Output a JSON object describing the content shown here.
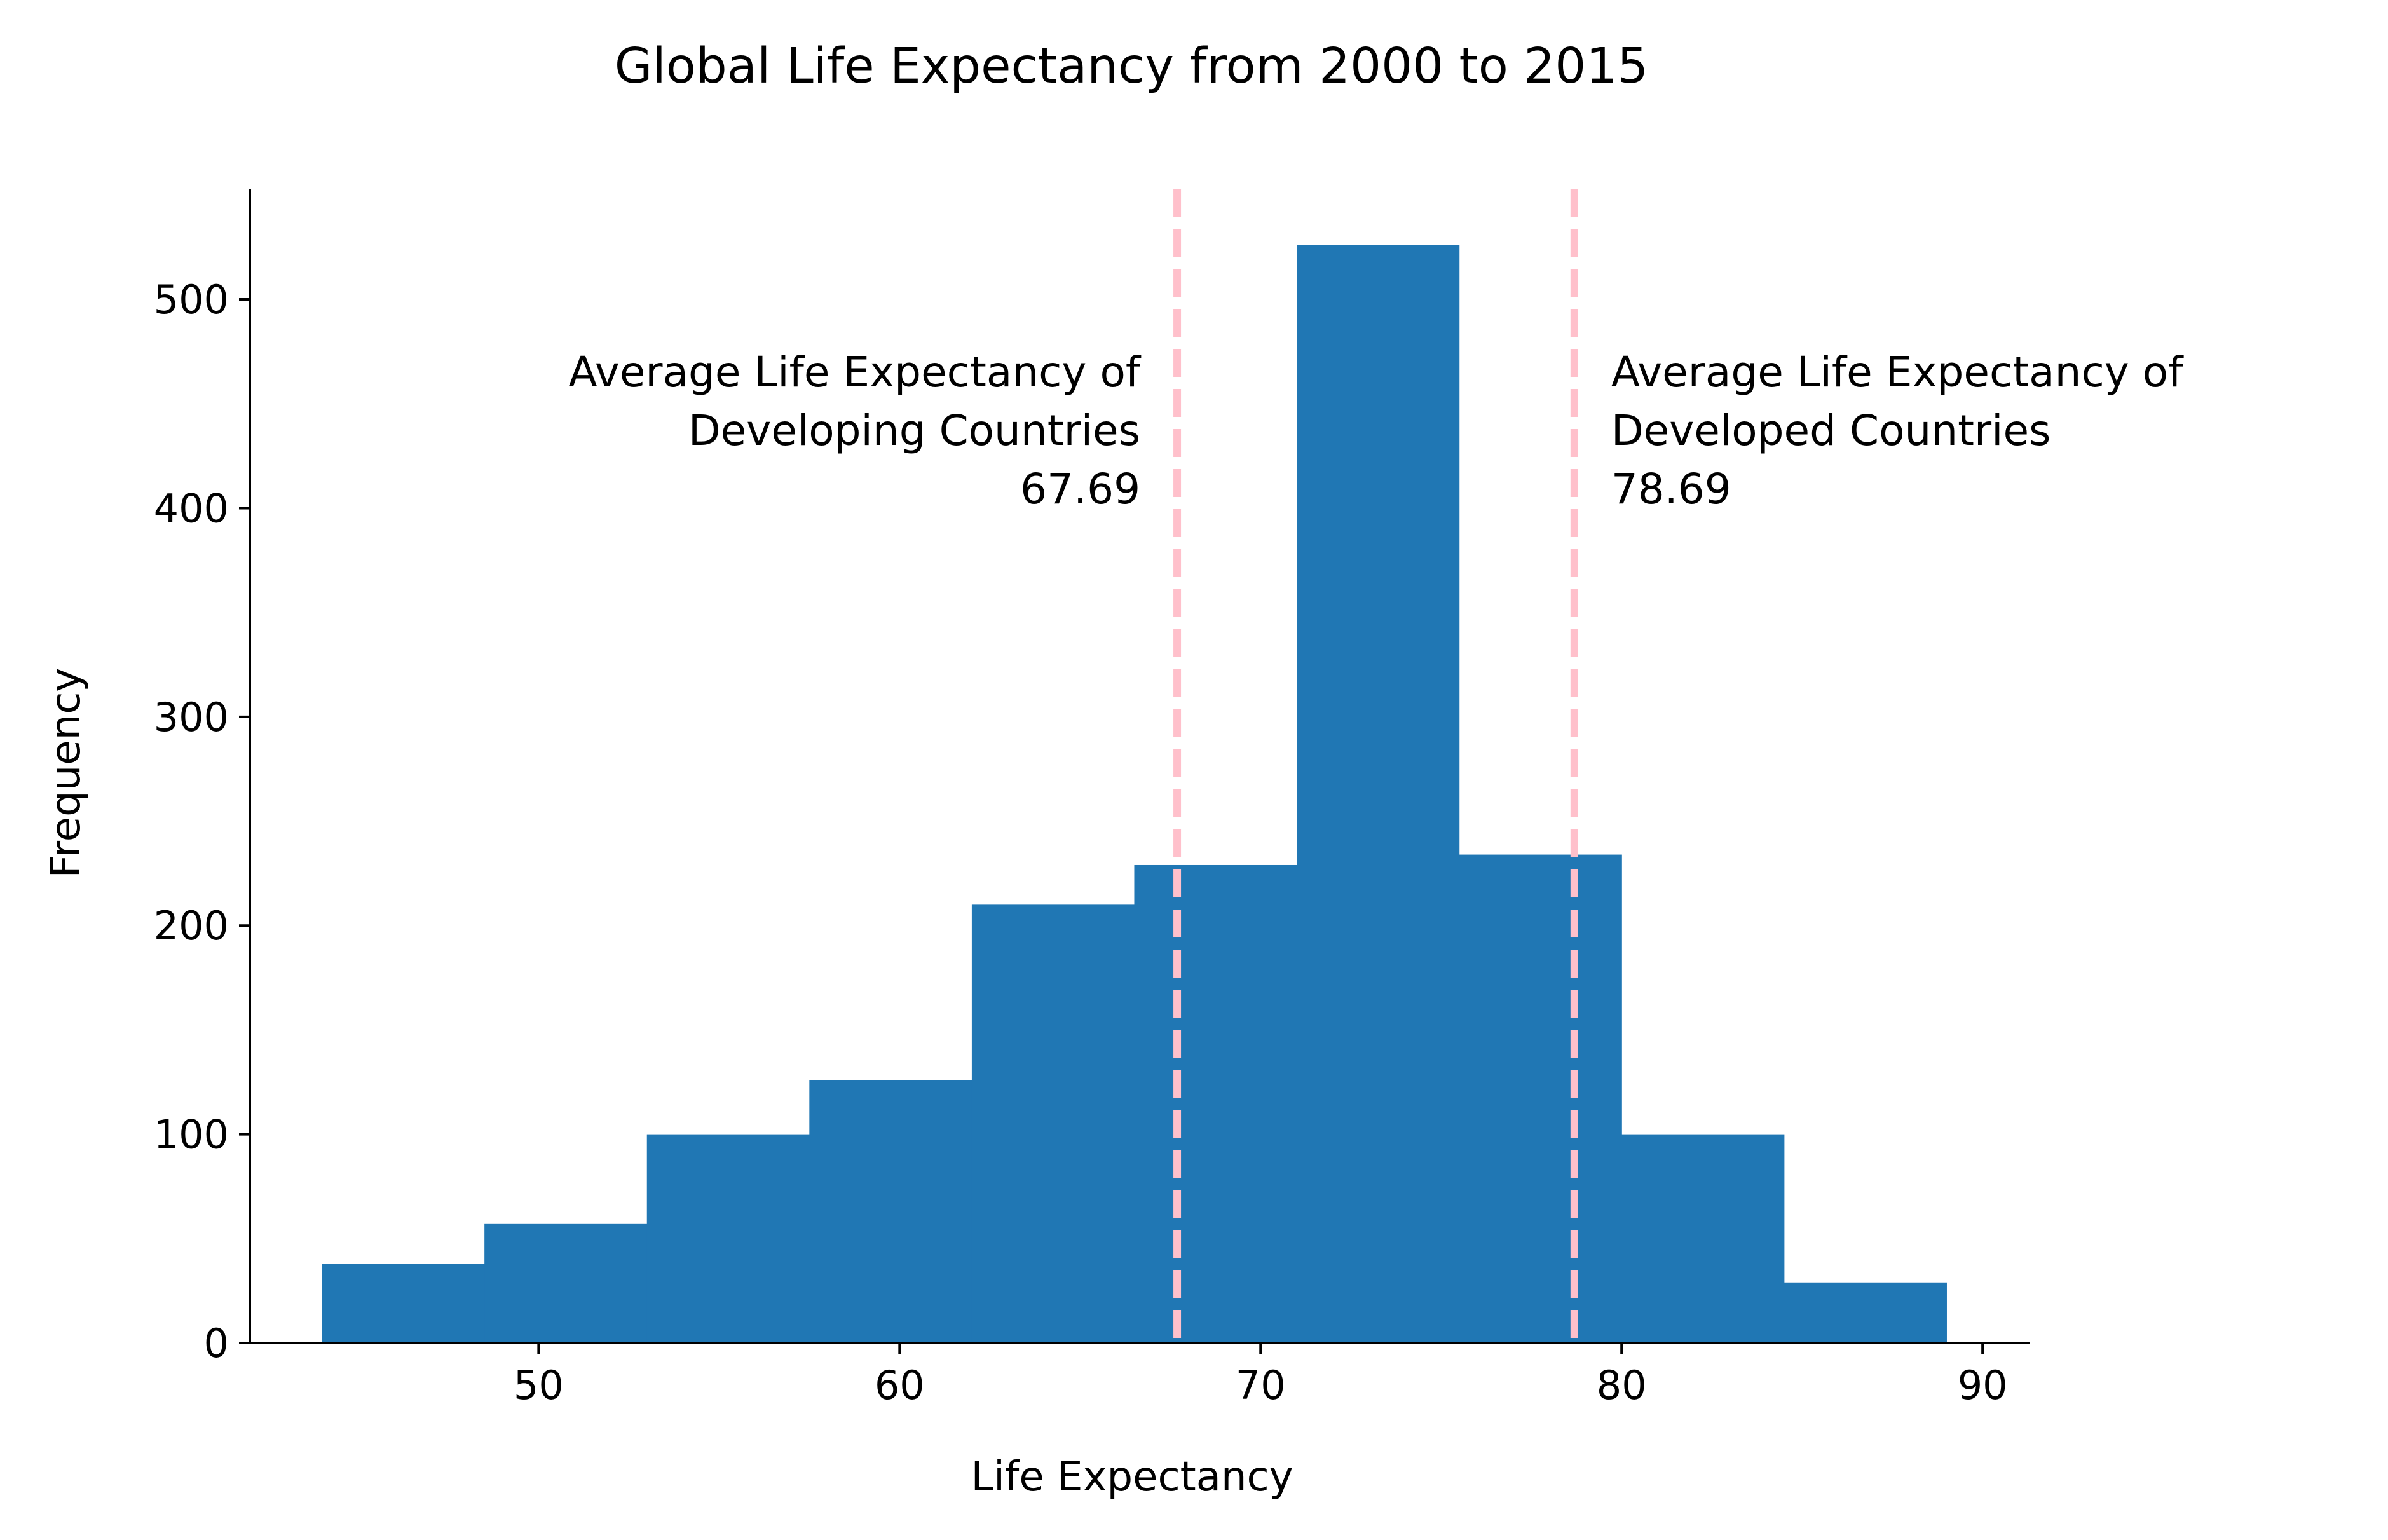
{
  "chart_data": {
    "type": "bar",
    "subtype": "histogram",
    "title": "Global Life Expectancy from 2000 to 2015",
    "xlabel": "Life Expectancy",
    "ylabel": "Frequency",
    "xlim": [
      42,
      91.3
    ],
    "ylim": [
      0,
      553
    ],
    "xticks": [
      50,
      60,
      70,
      80,
      90
    ],
    "yticks": [
      0,
      100,
      200,
      300,
      400,
      500
    ],
    "bin_edges": [
      44.0,
      48.5,
      53.0,
      57.5,
      62.0,
      66.5,
      71.0,
      75.5,
      80.0,
      84.5,
      89.0
    ],
    "values": [
      38,
      57,
      100,
      126,
      210,
      229,
      526,
      234,
      100,
      29
    ],
    "bar_color": "#2077b4",
    "grid": false,
    "legend": "none",
    "reference_lines": [
      {
        "x": 67.69,
        "color": "#ffc0cb",
        "style": "dashed",
        "label_lines": [
          "Average Life Expectancy of",
          "Developing Countries",
          "67.69"
        ],
        "label_side": "left"
      },
      {
        "x": 78.69,
        "color": "#ffc0cb",
        "style": "dashed",
        "label_lines": [
          "Average Life Expectancy of",
          "Developed Countries",
          "78.69"
        ],
        "label_side": "right"
      }
    ]
  }
}
